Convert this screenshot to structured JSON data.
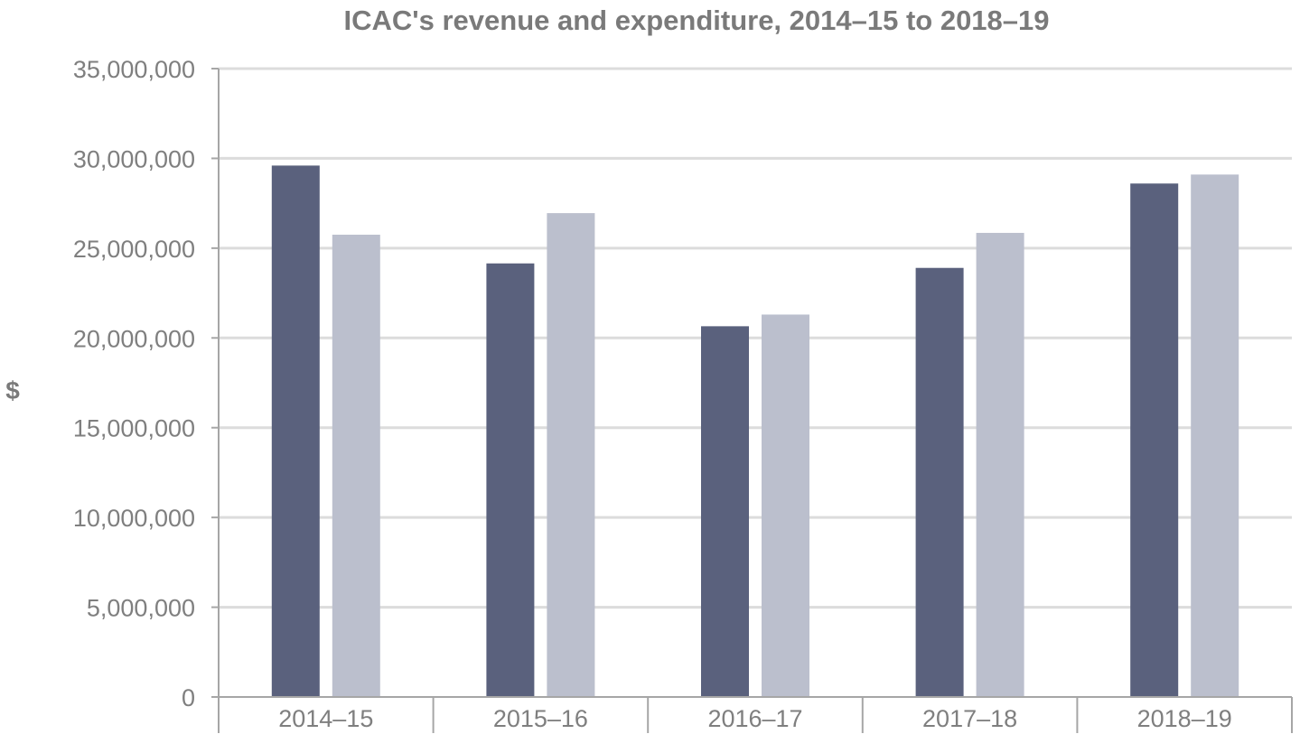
{
  "chart_data": {
    "type": "bar",
    "title": "ICAC's revenue and expenditure, 2014–15 to 2018–19",
    "xlabel": "",
    "ylabel": "$",
    "categories": [
      "2014–15",
      "2015–16",
      "2016–17",
      "2017–18",
      "2018–19"
    ],
    "series": [
      {
        "values": [
          29600000,
          24150000,
          20650000,
          23900000,
          28600000
        ]
      },
      {
        "values": [
          25750000,
          26950000,
          21300000,
          25850000,
          29100000
        ]
      }
    ],
    "ylim": [
      0,
      35000000
    ],
    "yticks": [
      0,
      5000000,
      10000000,
      15000000,
      20000000,
      25000000,
      30000000,
      35000000
    ],
    "ytick_labels": [
      "0",
      "5,000,000",
      "10,000,000",
      "15,000,000",
      "20,000,000",
      "25,000,000",
      "30,000,000",
      "35,000,000"
    ],
    "grid": true,
    "legend": "none",
    "colors": [
      "#5a617d",
      "#bbbfcd"
    ],
    "gridline_color": "#dcdcdc",
    "axis_color": "#a6a6a6"
  }
}
